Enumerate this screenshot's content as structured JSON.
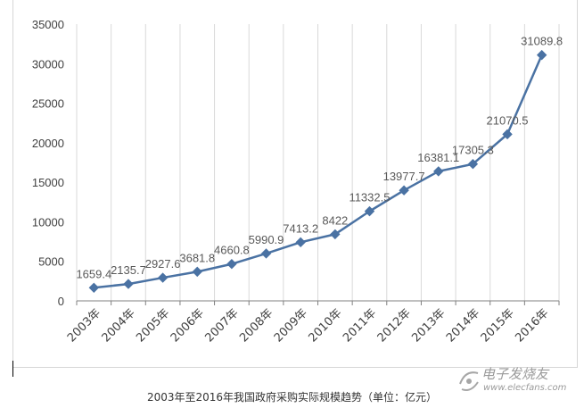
{
  "chart_data": {
    "type": "line",
    "categories": [
      "2003年",
      "2004年",
      "2005年",
      "2006年",
      "2007年",
      "2008年",
      "2009年",
      "2010年",
      "2011年",
      "2012年",
      "2013年",
      "2014年",
      "2015年",
      "2016年"
    ],
    "values": [
      1659.4,
      2135.7,
      2927.6,
      3681.8,
      4660.8,
      5990.9,
      7413.2,
      8422,
      11332.5,
      13977.7,
      16381.1,
      17305.3,
      21070.5,
      31089.8
    ],
    "data_labels": [
      "1659.4",
      "2135.7",
      "2927.6",
      "3681.8",
      "4660.8",
      "5990.9",
      "7413.2",
      "8422",
      "11332.5",
      "13977.7",
      "16381.1",
      "17305.3",
      "21070.5",
      "31089.8"
    ],
    "ylim": [
      0,
      35000
    ],
    "yticks": [
      "0",
      "5000",
      "10000",
      "15000",
      "20000",
      "25000",
      "30000",
      "35000"
    ],
    "grid": "vertical",
    "marker": "diamond",
    "line_color": "#4a72a3",
    "axis_color": "#808080",
    "label_color": "#595959"
  },
  "caption": "2003年至2016年我国政府采购实际规模趋势（单位：亿元）",
  "watermark": {
    "cn": "电子发烧友",
    "en": "www.elecfans.com"
  }
}
